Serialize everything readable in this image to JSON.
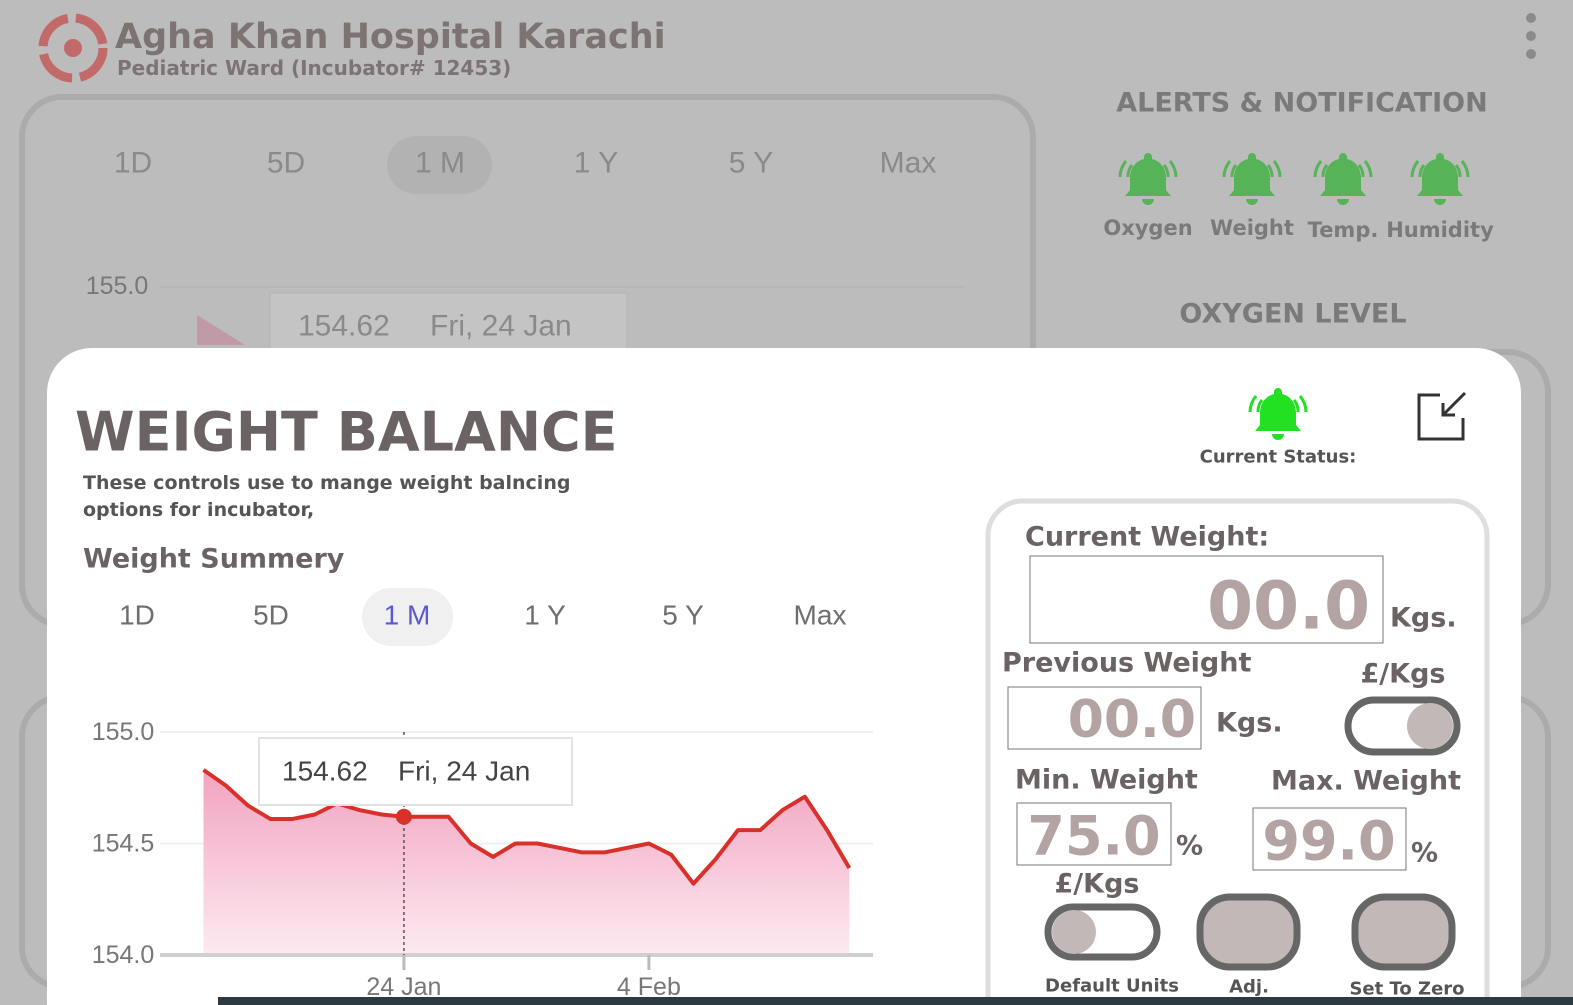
{
  "header": {
    "title": "Agha Khan Hospital Karachi",
    "subtitle": "Pediatric Ward (Incubator# 12453)"
  },
  "background": {
    "ranges": [
      "1D",
      "5D",
      "1 M",
      "1 Y",
      "5 Y",
      "Max"
    ],
    "chart_tick": "155.0",
    "tooltip_value": "154.62",
    "tooltip_date": "Fri, 24 Jan",
    "alerts_title": "ALERTS & NOTIFICATION",
    "alerts": [
      "Oxygen",
      "Weight",
      "Temp.",
      "Humidity"
    ],
    "oxygen_title": "OXYGEN LEVEL"
  },
  "modal": {
    "title": "WEIGHT BALANCE",
    "description": [
      "These controls use to mange weight balncing",
      "options for incubator,"
    ],
    "summary_title": "Weight Summery",
    "ranges": [
      "1D",
      "5D",
      "1 M",
      "1 Y",
      "5 Y",
      "Max"
    ],
    "status_label": "Current Status:",
    "current_weight": {
      "label": "Current Weight:",
      "value": "00.0",
      "unit": "Kgs."
    },
    "previous_weight": {
      "label": "Previous Weight",
      "value": "00.0",
      "unit": "Kgs."
    },
    "unit_toggle": "£/Kgs",
    "min_weight": {
      "label": "Min. Weight",
      "value": "75.0",
      "unit": "%"
    },
    "max_weight": {
      "label": "Max. Weight",
      "value": "99.0",
      "unit": "%"
    },
    "default_toggle": "£/Kgs",
    "buttons": [
      "Default Units",
      "Adj.",
      "Set To Zero"
    ]
  },
  "chart_data": {
    "type": "line",
    "color": "#d9302a",
    "categories": [
      null,
      null,
      null,
      null,
      null,
      null,
      null,
      null,
      null,
      "24 Jan",
      null,
      null,
      null,
      null,
      null,
      null,
      null,
      null,
      null,
      null,
      "4 Feb",
      null,
      null,
      null,
      null,
      null,
      null,
      null,
      null,
      null
    ],
    "values": [
      154.83,
      154.76,
      154.67,
      154.61,
      154.61,
      154.63,
      154.68,
      154.65,
      154.63,
      154.62,
      154.62,
      154.62,
      154.5,
      154.44,
      154.5,
      154.5,
      154.48,
      154.46,
      154.46,
      154.48,
      154.5,
      154.45,
      154.32,
      154.43,
      154.56,
      154.56,
      154.65,
      154.71,
      154.56,
      154.39
    ],
    "ylim": [
      154,
      155
    ],
    "yticks": [
      {
        "value": 154,
        "label": "154.0"
      },
      154.5,
      {
        "value": 155,
        "label": "155.0"
      }
    ],
    "grid": true,
    "tooltip": {
      "value": 154.62,
      "date": "Fri, 24 Jan"
    }
  }
}
